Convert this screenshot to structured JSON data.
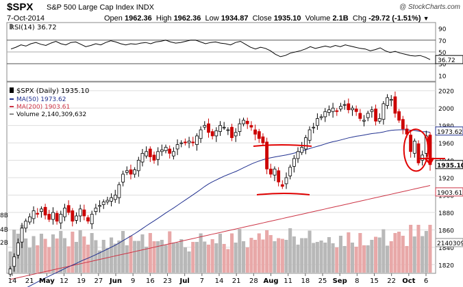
{
  "header": {
    "symbol": "$SPX",
    "name": "S&P 500 Large Cap Index",
    "exchange": "INDX",
    "date": "7-Oct-2014",
    "open_label": "Open",
    "open": "1962.36",
    "high_label": "High",
    "high": "1962.36",
    "low_label": "Low",
    "low": "1934.87",
    "close_label": "Close",
    "close": "1935.10",
    "volume_label": "Volume",
    "volume": "2.1B",
    "chg_label": "Chg",
    "chg": "-29.72 (-1.51%)",
    "watermark": "@ StockCharts.com"
  },
  "colors": {
    "up": "#000000",
    "down": "#cc0000",
    "ma50": "#1f2f8f",
    "ma200": "#cc3344",
    "vol_up": "#b8b8b8",
    "vol_down": "#e8a8a8",
    "annot": "#e00000",
    "grid": "#dddddd"
  },
  "chart_data": [
    {
      "type": "line",
      "panel": "rsi",
      "legend": "RSI(14) 36.72",
      "last_label": "36.72",
      "ylim": [
        0,
        100
      ],
      "yticks": [
        "90",
        "70",
        "50",
        "30",
        "10"
      ],
      "levels": [
        70,
        50,
        30
      ],
      "values": [
        55,
        58,
        62,
        60,
        64,
        66,
        63,
        61,
        65,
        68,
        64,
        62,
        66,
        67,
        63,
        59,
        61,
        64,
        62,
        66,
        69,
        67,
        64,
        62,
        64,
        63,
        65,
        66,
        64,
        67,
        68,
        70,
        67,
        65,
        66,
        68,
        70,
        70,
        67,
        64,
        66,
        67,
        65,
        64,
        62,
        66,
        68,
        63,
        58,
        55,
        58,
        56,
        52,
        46,
        42,
        44,
        48,
        50,
        52,
        55,
        59,
        56,
        58,
        60,
        58,
        61,
        59,
        62,
        60,
        58,
        56,
        55,
        52,
        54,
        57,
        52,
        49,
        51,
        48,
        46,
        44,
        43,
        44,
        41,
        37
      ]
    },
    {
      "type": "candlestick",
      "panel": "price",
      "title": "$SPX (Daily) 1935.10",
      "legend": [
        {
          "label": "MA(50) 1973.62",
          "color": "#1f2f8f"
        },
        {
          "label": "MA(200) 1903.61",
          "color": "#cc3344"
        },
        {
          "label": "Volume 2,140,309,632",
          "color": "#888888"
        }
      ],
      "ylim": [
        1810,
        2030
      ],
      "yticks": [
        "2020",
        "2000",
        "1980",
        "1960",
        "1940",
        "1920",
        "1900",
        "1880",
        "1860",
        "1840",
        "1820"
      ],
      "last_close_label": "1935.10",
      "ma50_label": "1973.62",
      "ma200_label": "1903.61",
      "volume_label": "2140309",
      "volume_left_labels": [
        "8B",
        "4B",
        "2B"
      ],
      "xlabels": [
        "14",
        "21",
        "May",
        "12",
        "19",
        "27",
        "Jun",
        "9",
        "16",
        "23",
        "Jul",
        "7",
        "14",
        "21",
        "28",
        "Aug",
        "11",
        "18",
        "25",
        "Sep",
        "8",
        "15",
        "22",
        "Oct",
        "6"
      ],
      "closes": [
        1815,
        1829,
        1845,
        1862,
        1870,
        1875,
        1882,
        1878,
        1884,
        1877,
        1872,
        1880,
        1870,
        1878,
        1885,
        1880,
        1870,
        1876,
        1884,
        1876,
        1870,
        1878,
        1885,
        1888,
        1892,
        1894,
        1897,
        1900,
        1912,
        1924,
        1928,
        1924,
        1929,
        1940,
        1948,
        1950,
        1944,
        1940,
        1950,
        1952,
        1955,
        1948,
        1950,
        1958,
        1960,
        1960,
        1962,
        1960,
        1968,
        1975,
        1980,
        1972,
        1968,
        1974,
        1980,
        1978,
        1975,
        1966,
        1972,
        1982,
        1986,
        1982,
        1978,
        1970,
        1965,
        1960,
        1930,
        1924,
        1930,
        1915,
        1910,
        1920,
        1932,
        1942,
        1950,
        1955,
        1966,
        1975,
        1978,
        1988,
        1990,
        1996,
        1998,
        2000,
        1996,
        2002,
        2004,
        1998,
        2000,
        1996,
        1988,
        1986,
        1994,
        1998,
        1985,
        1988,
        2005,
        2012,
        2010,
        1994,
        1986,
        1976,
        1970,
        1950,
        1962,
        1937,
        1946,
        1968,
        1935
      ]
    }
  ],
  "annotations": [
    "support-line-top",
    "support-line-bottom",
    "circle-october",
    "arrow-down"
  ]
}
